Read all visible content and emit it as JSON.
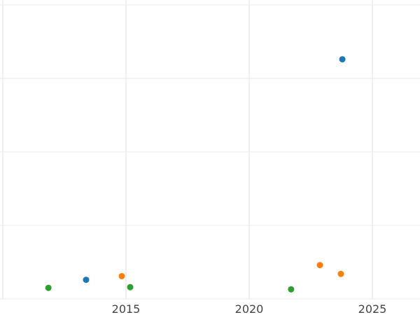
{
  "chart_data": {
    "type": "scatter",
    "title": "",
    "xlabel": "",
    "ylabel": "",
    "xlim": [
      2010,
      2026.9
    ],
    "ylim": [
      0,
      4
    ],
    "x_ticks": [
      2015,
      2020,
      2025
    ],
    "x_tick_labels": [
      "2015",
      "2020",
      "2025"
    ],
    "grid": true,
    "colors": [
      "#1f77b4",
      "#ff7f0e",
      "#2ca02c"
    ],
    "series": [
      {
        "color": "#1f77b4",
        "points": [
          {
            "x": 2013.38,
            "y": 0.26
          },
          {
            "x": 2023.78,
            "y": 3.26
          }
        ]
      },
      {
        "color": "#ff7f0e",
        "points": [
          {
            "x": 2014.83,
            "y": 0.31
          },
          {
            "x": 2022.87,
            "y": 0.46
          },
          {
            "x": 2023.72,
            "y": 0.34
          }
        ]
      },
      {
        "color": "#2ca02c",
        "points": [
          {
            "x": 2011.85,
            "y": 0.15
          },
          {
            "x": 2015.17,
            "y": 0.16
          },
          {
            "x": 2021.7,
            "y": 0.13
          }
        ]
      }
    ]
  }
}
